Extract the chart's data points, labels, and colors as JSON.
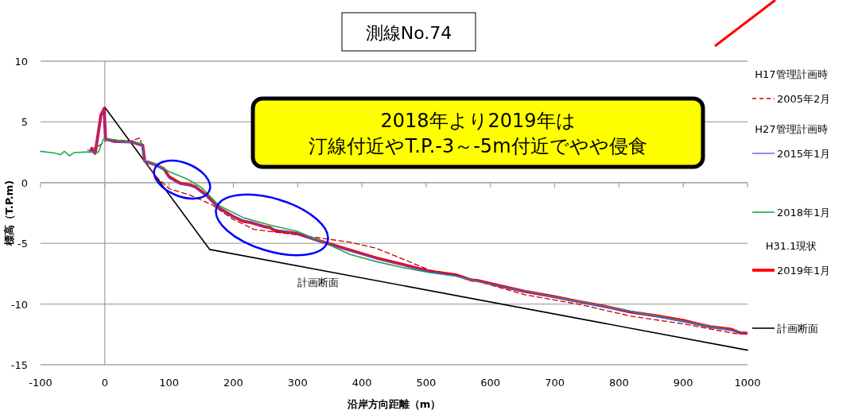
{
  "chart_data": {
    "type": "line",
    "title": "測線No.74",
    "xlabel": "沿岸方向距離（m）",
    "ylabel": "標高（T.P.m)",
    "xlim": [
      -100,
      1000
    ],
    "xticks": [
      -100,
      0,
      100,
      200,
      300,
      400,
      500,
      600,
      700,
      800,
      900,
      1000
    ],
    "ylim": [
      -15,
      10
    ],
    "yticks": [
      -15,
      -10,
      -5,
      0,
      5,
      10
    ],
    "grid": "y",
    "legend": "right",
    "marker": "none",
    "annotations": [
      "2018年より2019年は",
      "汀線付近やT.P.-3～-5m付近でやや侵食",
      "計画断面",
      "H17管理計画時",
      "H27管理計画時",
      "H31.1現状"
    ],
    "series": [
      {
        "name": "2005年2月",
        "color": "#c00000",
        "line_style": "dashed",
        "x": [
          -21,
          -15,
          5,
          40,
          55,
          62,
          80,
          100,
          133,
          166,
          199,
          232,
          265,
          299,
          340,
          381,
          422,
          464,
          505,
          546,
          653,
          736,
          818,
          901,
          983
        ],
        "values": [
          2.9,
          2.8,
          3.6,
          3.4,
          3.7,
          1.8,
          0.48,
          -0.5,
          -1.04,
          -1.8,
          -3.0,
          -3.85,
          -4.07,
          -4.3,
          -4.6,
          -4.9,
          -5.4,
          -6.3,
          -7.2,
          -7.6,
          -9.23,
          -10.0,
          -10.99,
          -11.64,
          -12.46
        ]
      },
      {
        "name": "2015年1月",
        "color": "#4a4aff",
        "line_style": "solid",
        "x": [
          -27,
          -20,
          -15,
          -6,
          -1,
          1,
          14,
          42,
          59,
          62,
          80,
          92,
          100,
          117,
          133,
          141,
          158,
          178,
          199,
          228,
          257,
          299,
          340,
          381,
          422,
          464,
          505,
          546,
          612,
          695,
          777,
          860,
          942,
          998
        ],
        "values": [
          2.7,
          2.6,
          2.45,
          5.5,
          6.0,
          3.6,
          3.35,
          3.3,
          3.05,
          1.75,
          1.4,
          1.0,
          0.35,
          -0.1,
          -0.25,
          -0.4,
          -1.1,
          -2.15,
          -2.8,
          -3.3,
          -3.75,
          -4.25,
          -4.95,
          -5.6,
          -6.25,
          -6.8,
          -7.35,
          -7.65,
          -8.5,
          -9.4,
          -10.25,
          -11.05,
          -11.9,
          -12.4
        ]
      },
      {
        "name": "2018年1月",
        "color": "#1fa84f",
        "line_style": "solid",
        "x": [
          -100,
          -77,
          -69,
          -63,
          -55,
          -48,
          -24,
          -10,
          -2,
          5,
          30,
          58,
          62,
          80,
          100,
          125,
          133,
          150,
          178,
          216,
          257,
          299,
          340,
          381,
          422,
          464,
          505,
          546,
          612,
          695,
          777,
          860,
          942,
          990
        ],
        "values": [
          2.58,
          2.42,
          2.3,
          2.58,
          2.2,
          2.47,
          2.53,
          2.5,
          3.6,
          3.6,
          3.4,
          3.2,
          1.8,
          1.5,
          0.9,
          0.37,
          0.15,
          -0.39,
          -1.9,
          -2.9,
          -3.5,
          -4.0,
          -4.9,
          -5.9,
          -6.5,
          -7.0,
          -7.4,
          -7.7,
          -8.5,
          -9.35,
          -10.2,
          -11.0,
          -11.85,
          -12.3
        ]
      },
      {
        "name": "2019年1月",
        "color": "#ff0000",
        "line_style": "solid",
        "x": [
          -21,
          -15,
          -6,
          -1,
          1,
          14,
          42,
          59,
          62,
          80,
          92,
          100,
          117,
          133,
          141,
          158,
          178,
          199,
          216,
          228,
          249,
          257,
          265,
          282,
          299,
          340,
          381,
          422,
          464,
          505,
          530,
          546,
          571,
          579,
          612,
          653,
          695,
          736,
          777,
          818,
          860,
          901,
          922,
          942,
          975,
          988,
          998
        ],
        "values": [
          2.75,
          2.42,
          5.56,
          6.1,
          3.6,
          3.4,
          3.35,
          3.07,
          1.78,
          1.45,
          1.13,
          0.48,
          -0.06,
          -0.2,
          -0.35,
          -1.04,
          -2.1,
          -2.77,
          -3.2,
          -3.3,
          -3.64,
          -3.7,
          -3.96,
          -4.07,
          -4.2,
          -4.9,
          -5.55,
          -6.2,
          -6.75,
          -7.3,
          -7.48,
          -7.6,
          -8.03,
          -8.05,
          -8.47,
          -8.95,
          -9.34,
          -9.78,
          -10.18,
          -10.66,
          -10.99,
          -11.36,
          -11.64,
          -11.86,
          -12.08,
          -12.37,
          -12.4
        ]
      },
      {
        "name": "計画断面",
        "color": "#000000",
        "line_style": "solid",
        "x": [
          0,
          163,
          1000
        ],
        "values": [
          6.2,
          -5.5,
          -13.8
        ]
      }
    ]
  }
}
